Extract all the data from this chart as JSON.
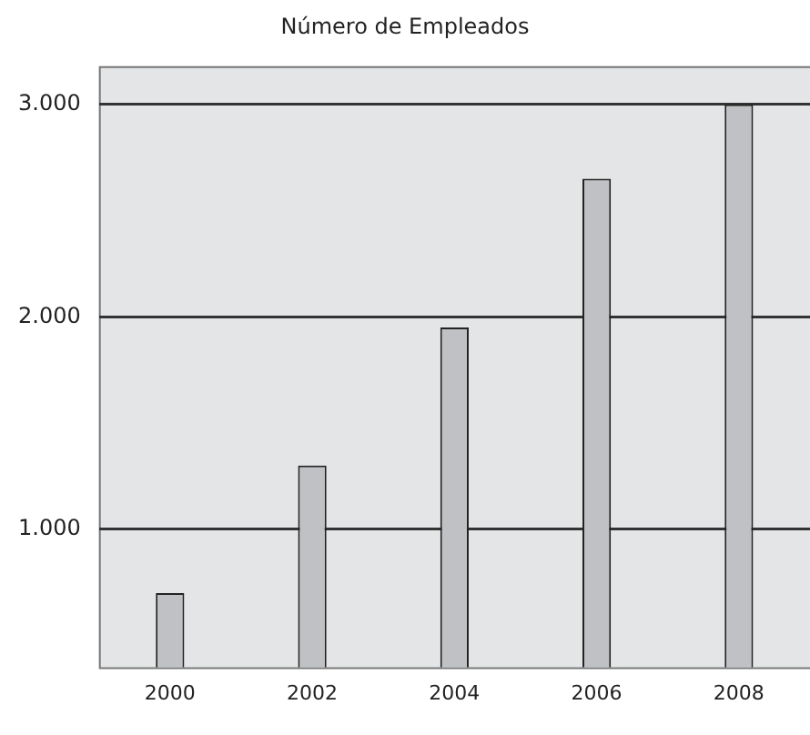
{
  "chart_data": {
    "type": "bar",
    "title": "Número de Empleados",
    "categories": [
      "2000",
      "2002",
      "2004",
      "2006",
      "2008"
    ],
    "values": [
      700,
      1300,
      1950,
      2650,
      3000
    ],
    "color": "#c0c1c4",
    "ylim": [
      350,
      3180
    ],
    "yticks": [
      {
        "value": 1000,
        "label": "1.000"
      },
      {
        "value": 2000,
        "label": "2.000"
      },
      {
        "value": 3000,
        "label": "3.000"
      }
    ],
    "grid": "y",
    "legend": false
  }
}
